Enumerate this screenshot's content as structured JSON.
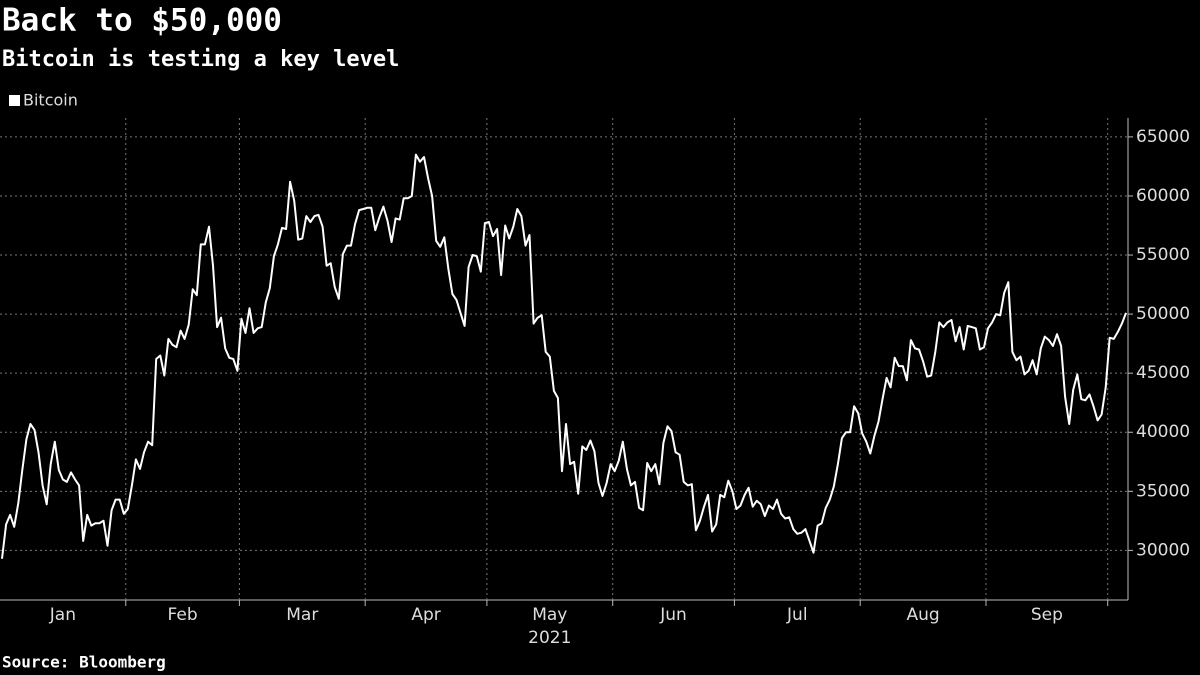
{
  "chart_data": {
    "type": "line",
    "title": "Back to $50,000",
    "subtitle": "Bitcoin is testing a key level",
    "source": "Source: Bloomberg",
    "year_label": "2021",
    "categories": [
      "Jan",
      "Feb",
      "Mar",
      "Apr",
      "May",
      "Jun",
      "Jul",
      "Aug",
      "Sep",
      null
    ],
    "series": [
      {
        "name": "Bitcoin",
        "color": "#ffffff",
        "values": [
          [
            29300,
            32200,
            33000,
            32000,
            34000,
            36800,
            39400,
            40700,
            40200,
            38300,
            35500,
            33900,
            37300,
            39200,
            36800,
            36000,
            35800,
            36600,
            36000,
            35500,
            30800,
            33000,
            32100,
            32300,
            32300,
            32500,
            30400,
            33400,
            34300,
            34300,
            33100
          ],
          [
            33500,
            35500,
            37700,
            36900,
            38300,
            39200,
            38900,
            46200,
            46500,
            44800,
            47900,
            47400,
            47200,
            48600,
            47900,
            49100,
            52100,
            51600,
            55900,
            55900,
            57400,
            54100,
            48900,
            49700,
            47100,
            46300,
            46200,
            45200
          ],
          [
            49600,
            48400,
            50500,
            48400,
            48800,
            48900,
            51000,
            52200,
            54900,
            55900,
            57300,
            57200,
            61200,
            59600,
            56300,
            56400,
            58300,
            57800,
            58300,
            58400,
            57400,
            54100,
            54300,
            52300,
            51300,
            55100,
            55800,
            55800,
            57600,
            58800,
            58900
          ],
          [
            59000,
            59000,
            57100,
            58200,
            59100,
            57900,
            56100,
            58100,
            58000,
            59800,
            59800,
            60000,
            63500,
            62900,
            63300,
            61500,
            60000,
            56200,
            55700,
            56500,
            53800,
            51700,
            51200,
            50100,
            49000,
            54000,
            55000,
            54900,
            53600,
            57700
          ],
          [
            57800,
            56600,
            57200,
            53300,
            57500,
            56400,
            57400,
            58900,
            58300,
            55800,
            56700,
            49200,
            49700,
            49900,
            46800,
            46400,
            43500,
            42900,
            36700,
            40700,
            37300,
            37500,
            34800,
            38800,
            38500,
            39300,
            38400,
            35700,
            34600,
            35700,
            37300
          ],
          [
            36700,
            37600,
            39200,
            36900,
            35500,
            35800,
            33600,
            33400,
            37400,
            36700,
            37300,
            35600,
            39100,
            40500,
            40100,
            38300,
            38100,
            35800,
            35500,
            35600,
            31700,
            32500,
            33700,
            34700,
            31600,
            32200,
            34700,
            34500,
            35900,
            35000
          ],
          [
            33500,
            33800,
            34700,
            35300,
            33700,
            34200,
            33900,
            32900,
            33800,
            33500,
            34300,
            33100,
            32700,
            32800,
            31800,
            31400,
            31500,
            31800,
            30800,
            29800,
            32100,
            32300,
            33600,
            34300,
            35400,
            37300,
            39500,
            40000,
            40000,
            42200,
            41600
          ],
          [
            39900,
            39200,
            38200,
            39700,
            40900,
            42800,
            44600,
            43800,
            46300,
            45600,
            45600,
            44400,
            47800,
            47100,
            47000,
            46000,
            44700,
            44800,
            46800,
            49300,
            48900,
            49300,
            49500,
            47700,
            48900,
            47000,
            49000,
            48900,
            48800,
            47000,
            47200
          ],
          [
            48800,
            49300,
            50000,
            49900,
            51800,
            52700,
            46800,
            46100,
            46400,
            44900,
            45200,
            46100,
            44900,
            47100,
            48100,
            47800,
            47300,
            48300,
            47300,
            43000,
            40700,
            43600,
            44900,
            42800,
            42700,
            43200,
            42200,
            41000,
            41500,
            43800
          ],
          [
            48000,
            47900,
            48500,
            49200,
            50100
          ]
        ]
      }
    ],
    "ylim": [
      25800,
      66600
    ],
    "yticks": [
      30000,
      35000,
      40000,
      45000,
      50000,
      55000,
      60000,
      65000
    ],
    "grid": true,
    "legend": "top-left"
  }
}
